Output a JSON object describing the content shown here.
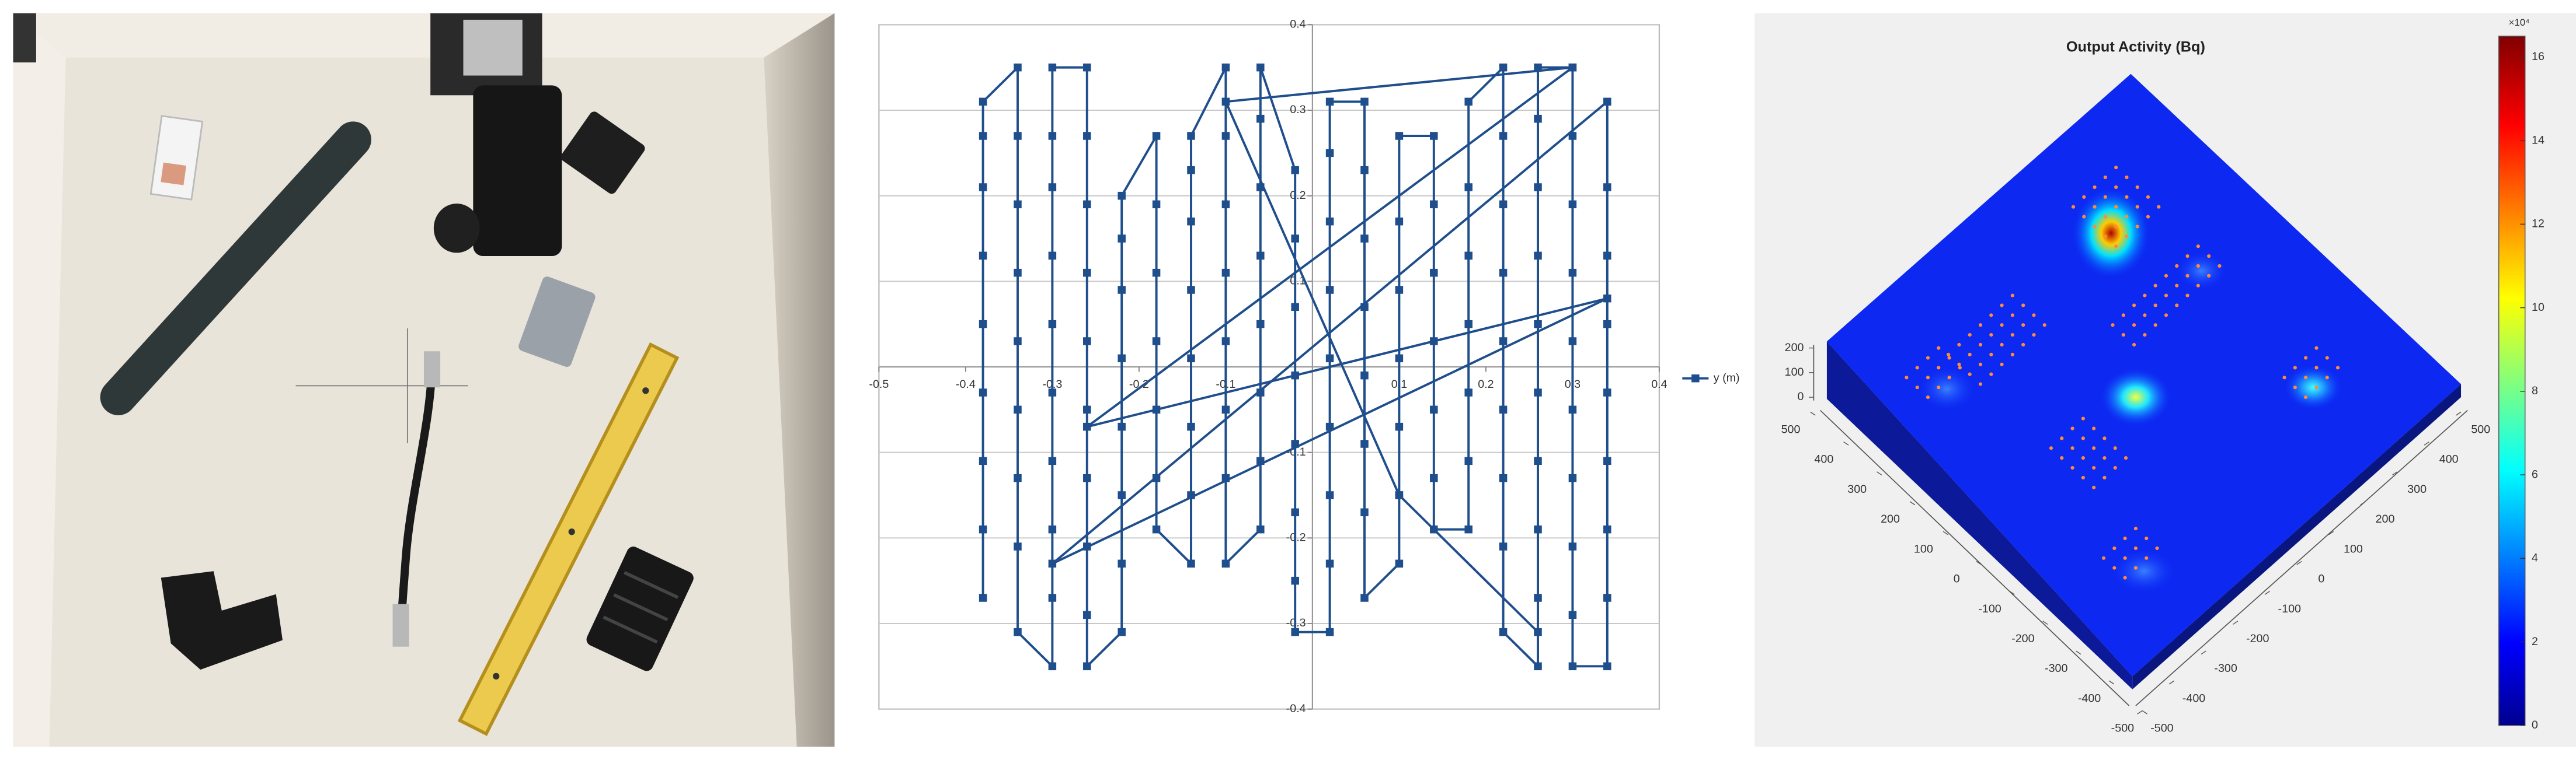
{
  "chart_data": [
    {
      "type": "line",
      "x": [
        -0.38,
        -0.38,
        -0.38,
        -0.38,
        -0.38,
        -0.38,
        -0.38,
        -0.38,
        -0.38,
        -0.34,
        -0.34,
        -0.34,
        -0.34,
        -0.34,
        -0.34,
        -0.34,
        -0.34,
        -0.34,
        -0.3,
        -0.3,
        -0.3,
        -0.3,
        -0.3,
        -0.3,
        -0.3,
        -0.3,
        -0.3,
        -0.3,
        -0.26,
        -0.26,
        -0.26,
        -0.26,
        -0.26,
        -0.26,
        -0.26,
        -0.26,
        -0.26,
        -0.26,
        -0.22,
        -0.22,
        -0.22,
        -0.22,
        -0.22,
        -0.22,
        -0.22,
        -0.22,
        -0.18,
        -0.18,
        -0.18,
        -0.18,
        -0.18,
        -0.18,
        -0.18,
        -0.14,
        -0.14,
        -0.14,
        -0.14,
        -0.14,
        -0.14,
        -0.14,
        -0.14,
        -0.1,
        -0.1,
        -0.1,
        -0.1,
        -0.1,
        -0.1,
        -0.1,
        -0.1,
        -0.06,
        -0.06,
        -0.06,
        -0.06,
        -0.06,
        -0.06,
        -0.06,
        -0.06,
        -0.02,
        -0.02,
        -0.02,
        -0.02,
        -0.02,
        -0.02,
        -0.02,
        -0.02,
        0.02,
        0.02,
        0.02,
        0.02,
        0.02,
        0.02,
        0.02,
        0.02,
        0.02,
        0.06,
        0.06,
        0.06,
        0.06,
        0.06,
        0.06,
        0.06,
        0.06,
        0.1,
        0.1,
        0.1,
        0.1,
        0.1,
        0.1,
        0.1,
        0.14,
        0.14,
        0.14,
        0.14,
        0.14,
        0.14,
        0.14,
        0.18,
        0.18,
        0.18,
        0.18,
        0.18,
        0.18,
        0.18,
        0.22,
        0.22,
        0.22,
        0.22,
        0.22,
        0.22,
        0.22,
        0.22,
        0.22,
        0.26,
        0.26,
        0.26,
        0.26,
        0.26,
        0.26,
        0.26,
        0.26,
        0.26,
        0.26,
        0.3,
        0.3,
        0.3,
        0.3,
        0.3,
        0.3,
        0.3,
        0.3,
        0.3,
        0.3,
        0.34,
        0.34,
        0.34,
        0.34,
        0.34,
        0.34,
        0.34,
        0.34,
        0.34,
        -0.3,
        0.34,
        -0.26,
        0.3,
        -0.1,
        0.1,
        0.26
      ],
      "series": [
        {
          "name": "y (m)",
          "color": "#1f4e8c",
          "values": [
            -0.27,
            -0.19,
            -0.11,
            -0.03,
            0.05,
            0.13,
            0.21,
            0.27,
            0.31,
            0.35,
            0.27,
            0.19,
            0.11,
            0.03,
            -0.05,
            -0.13,
            -0.21,
            -0.31,
            -0.35,
            -0.27,
            -0.19,
            -0.11,
            -0.03,
            0.05,
            0.13,
            0.21,
            0.27,
            0.35,
            0.35,
            0.27,
            0.19,
            0.11,
            0.03,
            -0.05,
            -0.13,
            -0.21,
            -0.29,
            -0.35,
            -0.31,
            -0.23,
            -0.15,
            -0.07,
            0.01,
            0.09,
            0.15,
            0.2,
            0.27,
            0.19,
            0.11,
            0.03,
            -0.05,
            -0.13,
            -0.19,
            -0.23,
            -0.15,
            -0.07,
            0.01,
            0.09,
            0.17,
            0.23,
            0.27,
            0.35,
            0.27,
            0.19,
            0.11,
            0.03,
            -0.05,
            -0.13,
            -0.23,
            -0.19,
            -0.11,
            -0.03,
            0.05,
            0.13,
            0.21,
            0.29,
            0.35,
            0.23,
            0.15,
            0.07,
            -0.01,
            -0.09,
            -0.17,
            -0.25,
            -0.31,
            -0.31,
            -0.23,
            -0.15,
            -0.07,
            0.01,
            0.09,
            0.17,
            0.25,
            0.31,
            0.31,
            0.23,
            0.15,
            0.07,
            -0.01,
            -0.09,
            -0.17,
            -0.27,
            -0.23,
            -0.15,
            -0.07,
            0.01,
            0.09,
            0.17,
            0.27,
            0.27,
            0.19,
            0.11,
            0.03,
            -0.05,
            -0.13,
            -0.19,
            -0.19,
            -0.11,
            -0.03,
            0.05,
            0.13,
            0.21,
            0.31,
            0.35,
            0.27,
            0.19,
            0.11,
            0.03,
            -0.05,
            -0.13,
            -0.21,
            -0.31,
            -0.35,
            -0.27,
            -0.19,
            -0.11,
            -0.03,
            0.05,
            0.13,
            0.21,
            0.29,
            0.35,
            0.35,
            0.27,
            0.19,
            0.11,
            0.03,
            -0.05,
            -0.13,
            -0.21,
            -0.29,
            -0.35,
            -0.35,
            -0.27,
            -0.19,
            -0.11,
            -0.03,
            0.05,
            0.13,
            0.21,
            0.31,
            -0.23,
            0.08,
            -0.07,
            0.35,
            0.31,
            -0.15,
            -0.31
          ]
        }
      ],
      "xlim": [
        -0.5,
        0.4
      ],
      "ylim": [
        -0.4,
        0.4
      ],
      "xticks": [
        -0.5,
        -0.4,
        -0.3,
        -0.2,
        -0.1,
        0.1,
        0.2,
        0.3,
        0.4
      ],
      "yticks": [
        -0.4,
        -0.3,
        -0.2,
        -0.1,
        0.1,
        0.2,
        0.3,
        0.4
      ],
      "grid": true,
      "legend": "right",
      "marker": "square"
    },
    {
      "type": "surface",
      "title": "Output Activity (Bq)",
      "xlim": [
        -500,
        500
      ],
      "ylim": [
        -500,
        500
      ],
      "zlim": [
        0,
        200
      ],
      "xticks": [
        -500,
        -400,
        -300,
        -200,
        -100,
        0,
        100,
        200,
        300,
        400,
        500
      ],
      "yticks": [
        -500,
        -400,
        -300,
        -200,
        -100,
        0,
        100,
        200,
        300,
        400,
        500
      ],
      "zticks": [
        0,
        100,
        200
      ],
      "colormap": "jet",
      "colorbar": {
        "lim": [
          0,
          16.5
        ],
        "ticks": [
          0,
          2,
          4,
          6,
          8,
          10,
          12,
          14,
          16
        ],
        "label": "×10⁴"
      }
    }
  ]
}
